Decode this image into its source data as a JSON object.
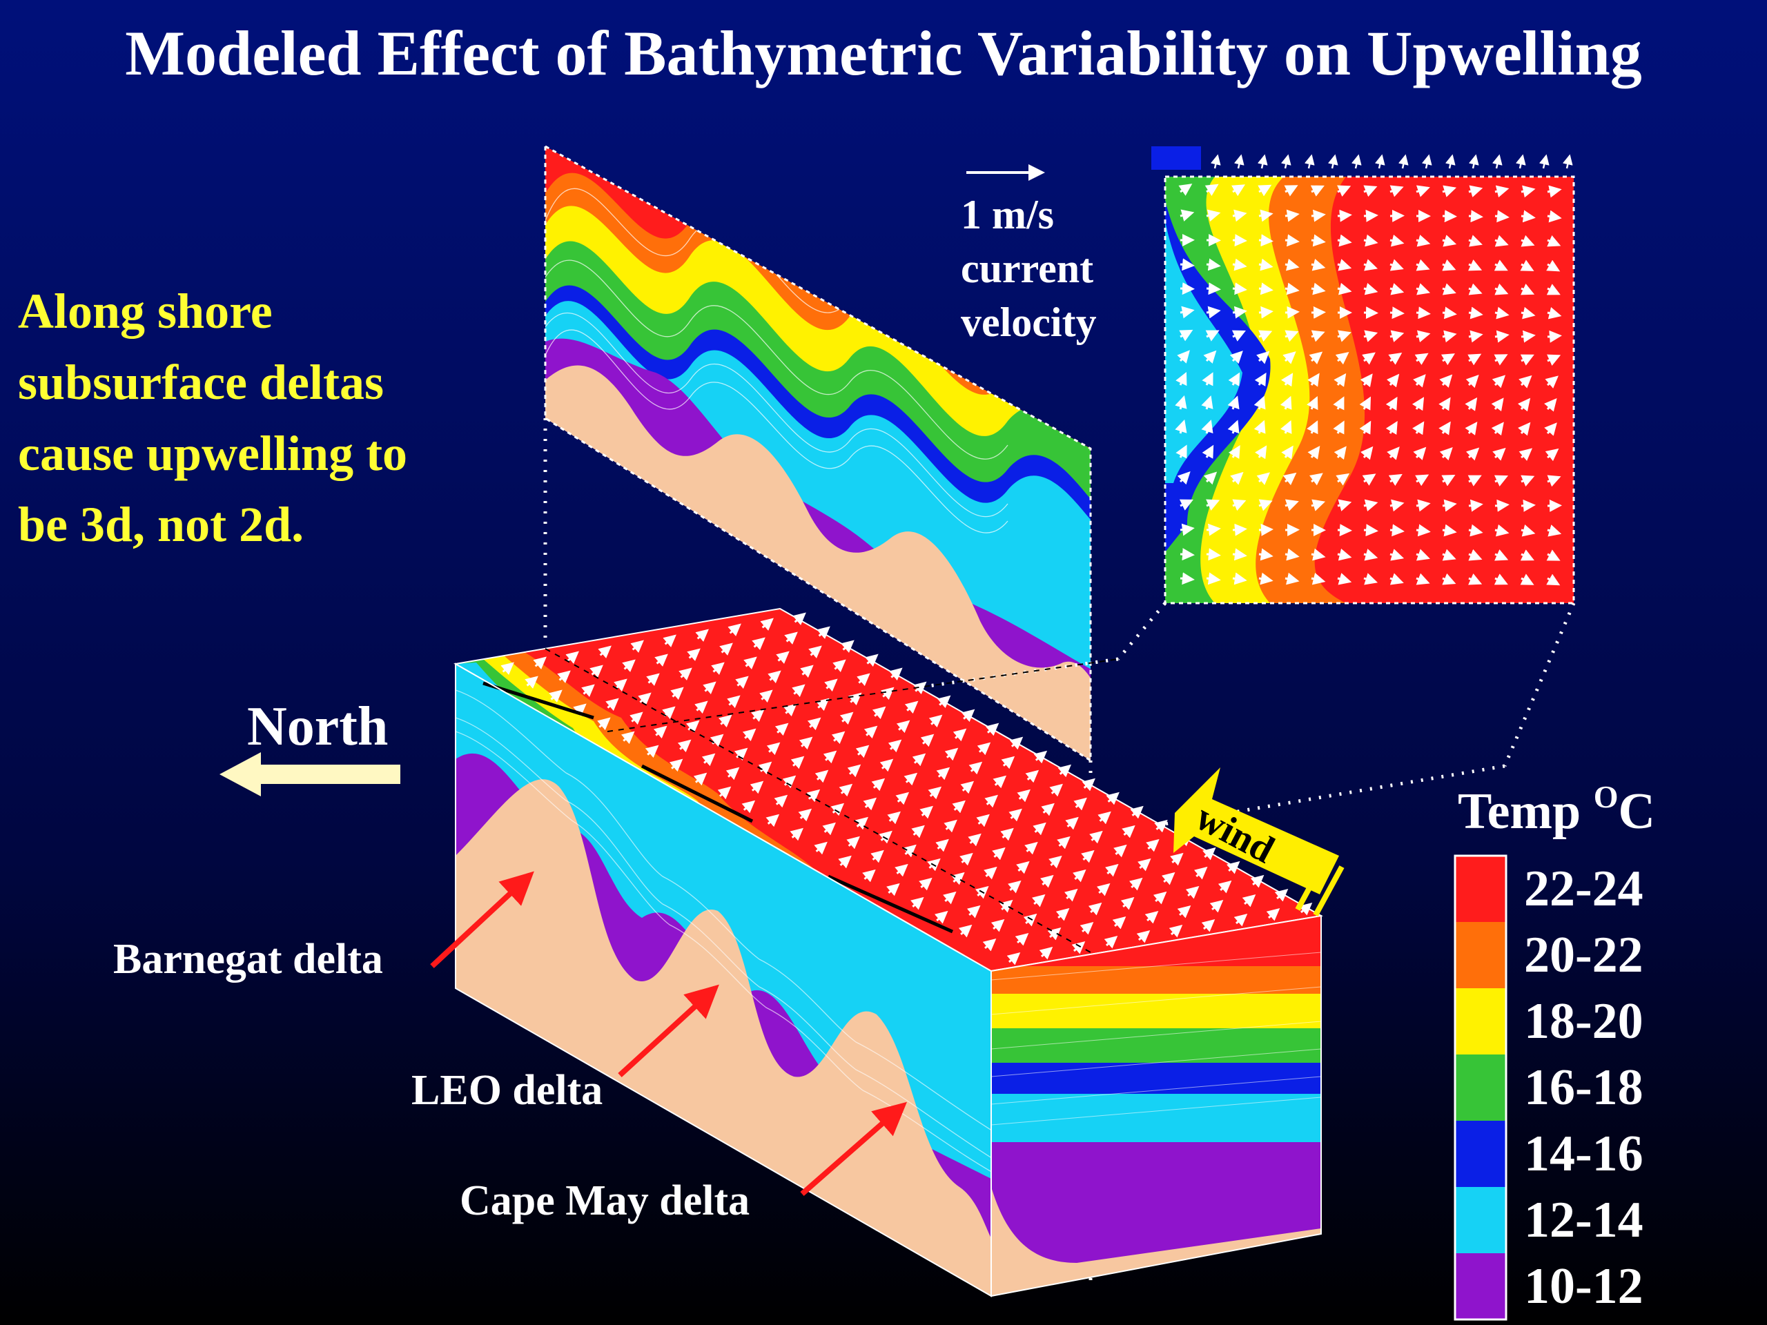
{
  "title": "Modeled Effect of Bathymetric Variability on Upwelling",
  "caption": {
    "lines": [
      "Along shore",
      "subsurface deltas",
      "cause upwelling to",
      "be 3d, not 2d."
    ]
  },
  "velocity_scale": {
    "lines": [
      "1 m/s",
      "current",
      "velocity"
    ]
  },
  "north_label": "North",
  "wind_label": "wind",
  "deltas": {
    "barnegat": "Barnegat delta",
    "leo": "LEO delta",
    "cape_may": "Cape May delta"
  },
  "legend": {
    "title": "Temp",
    "unit_superscript": "O",
    "unit": "C",
    "items": [
      {
        "label": "22-24",
        "color": "#ff1c1c"
      },
      {
        "label": "20-22",
        "color": "#ff6f0a"
      },
      {
        "label": "18-20",
        "color": "#fff200"
      },
      {
        "label": "16-18",
        "color": "#37c437"
      },
      {
        "label": "14-16",
        "color": "#0a1fe6"
      },
      {
        "label": "12-14",
        "color": "#16d2f5"
      },
      {
        "label": "10-12",
        "color": "#8f14cc"
      }
    ]
  },
  "colors": {
    "seafloor": "#f7c7a0",
    "title": "#ffffff",
    "caption": "#ffff33",
    "delta_arrow": "#ff1a1a",
    "north_arrow": "#fff8c2",
    "wind_arrow": "#ffee00"
  }
}
